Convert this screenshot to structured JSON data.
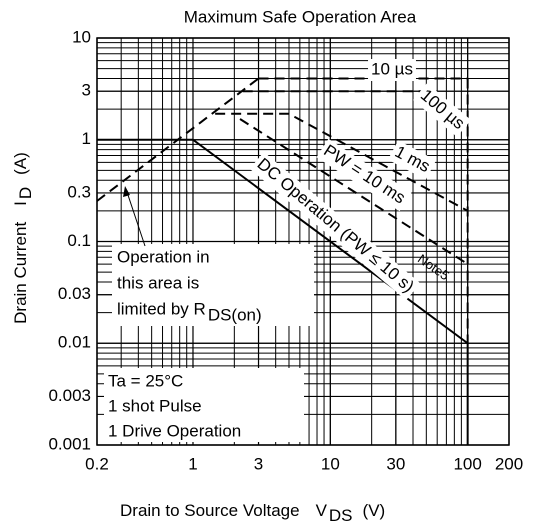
{
  "chart_data": {
    "type": "line",
    "title": "Maximum Safe Operation Area",
    "xlabel": "Drain to Source Voltage",
    "xlabel_symbol": "V",
    "xlabel_sub": "DS",
    "xlabel_unit": "(V)",
    "ylabel": "Drain Current",
    "ylabel_symbol": "I",
    "ylabel_sub": "D",
    "ylabel_unit": "(A)",
    "xlog": true,
    "ylog": true,
    "grid": true,
    "xlim": [
      0.2,
      200
    ],
    "ylim": [
      0.001,
      10
    ],
    "xticks": [
      0.2,
      1,
      3,
      10,
      30,
      100,
      200
    ],
    "yticks": [
      0.001,
      0.003,
      0.01,
      0.03,
      0.1,
      0.3,
      1,
      3,
      10
    ],
    "series": [
      {
        "color": "#000",
        "dash": true,
        "x": [
          0.2,
          3
        ],
        "values": [
          0.25,
          4
        ]
      },
      {
        "name": "10 µs",
        "color": "#000",
        "dash": true,
        "x": [
          3,
          100
        ],
        "values": [
          4,
          4
        ]
      },
      {
        "name": "100 µs",
        "color": "#000",
        "dash": true,
        "x": [
          2.3,
          50,
          100
        ],
        "values": [
          3,
          3,
          1.5
        ]
      },
      {
        "name": "1 ms",
        "color": "#000",
        "dash": true,
        "x": [
          1.45,
          5,
          100
        ],
        "values": [
          1.8,
          1.8,
          0.2
        ]
      },
      {
        "name": "PW = 10 ms",
        "color": "#000",
        "dash": true,
        "x": [
          2.2,
          100
        ],
        "values": [
          1.6,
          0.06
        ]
      },
      {
        "name": "DC Operation (PW ≤ 10 s)",
        "color": "#000",
        "dash": false,
        "x": [
          0.2,
          1,
          100
        ],
        "values": [
          1,
          1,
          0.01
        ]
      },
      {
        "color": "#000",
        "dash": true,
        "x": [
          100,
          100
        ],
        "values": [
          4,
          0.01
        ]
      },
      {
        "color": "#000",
        "dash": false,
        "x": [
          100,
          100
        ],
        "values": [
          0.01,
          0.001
        ]
      }
    ],
    "annotations": {
      "note": "Note5",
      "rds": [
        "Operation in",
        "this area is",
        "limited by R"
      ],
      "rds_sub": "DS(on)",
      "conditions": [
        "Ta = 25°C",
        "1 shot Pulse",
        "1 Drive Operation"
      ]
    }
  }
}
